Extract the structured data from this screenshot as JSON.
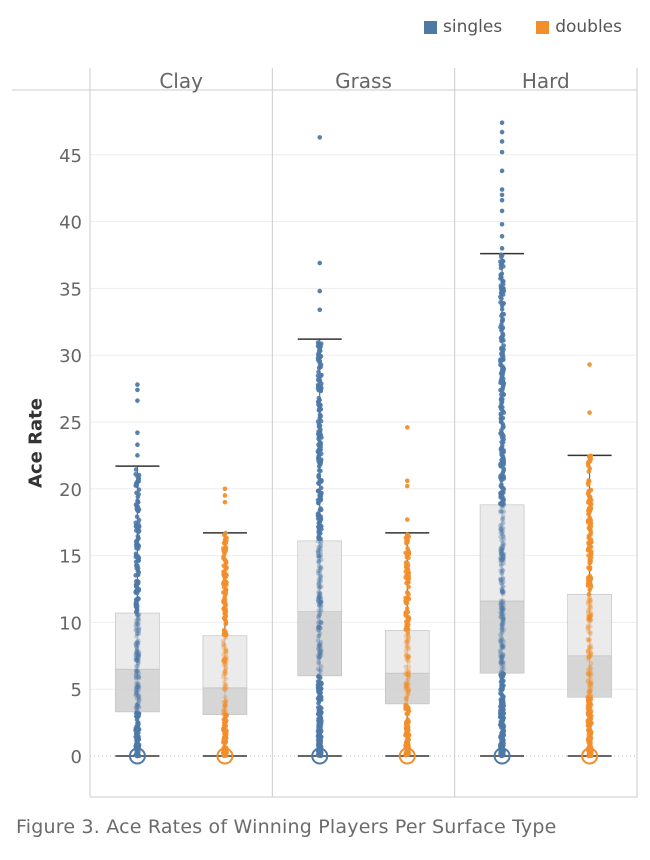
{
  "legend": [
    {
      "label": "singles",
      "color": "#4e79a7"
    },
    {
      "label": "doubles",
      "color": "#f28e2b"
    }
  ],
  "caption": "Figure 3. Ace Rates of Winning Players Per Surface Type",
  "chart_data": {
    "type": "box",
    "title": "",
    "ylabel": "Ace Rate",
    "xlabel": "",
    "ylim": [
      0,
      48
    ],
    "yticks": [
      0,
      5,
      10,
      15,
      20,
      25,
      30,
      35,
      40,
      45
    ],
    "grid": true,
    "legend_position": "top-right",
    "panels": [
      "Clay",
      "Grass",
      "Hard"
    ],
    "series": [
      {
        "name": "singles",
        "color": "#4e79a7",
        "boxes": [
          {
            "panel": "Clay",
            "min": 0,
            "q1": 3.3,
            "median": 6.5,
            "q3": 10.7,
            "whisker_high": 21.7,
            "outliers": [
              22.5,
              23.3,
              24.2,
              26.6,
              27.4,
              27.8
            ]
          },
          {
            "panel": "Grass",
            "min": 0,
            "q1": 6.0,
            "median": 10.8,
            "q3": 16.1,
            "whisker_high": 31.2,
            "outliers": [
              33.4,
              34.8,
              36.9,
              46.3
            ]
          },
          {
            "panel": "Hard",
            "min": 0,
            "q1": 6.2,
            "median": 11.6,
            "q3": 18.8,
            "whisker_high": 37.6,
            "outliers": [
              38.0,
              38.9,
              39.8,
              40.8,
              41.6,
              42.0,
              42.4,
              43.8,
              45.2,
              46.0,
              46.7,
              47.4
            ]
          }
        ]
      },
      {
        "name": "doubles",
        "color": "#f28e2b",
        "boxes": [
          {
            "panel": "Clay",
            "min": 0,
            "q1": 3.1,
            "median": 5.1,
            "q3": 9.0,
            "whisker_high": 16.7,
            "outliers": [
              19.0,
              19.5,
              20.0
            ]
          },
          {
            "panel": "Grass",
            "min": 0,
            "q1": 3.9,
            "median": 6.2,
            "q3": 9.4,
            "whisker_high": 16.7,
            "outliers": [
              17.7,
              20.2,
              20.6,
              24.6
            ]
          },
          {
            "panel": "Hard",
            "min": 0,
            "q1": 4.4,
            "median": 7.5,
            "q3": 12.1,
            "whisker_high": 22.5,
            "outliers": [
              25.7,
              29.3
            ]
          }
        ]
      }
    ]
  }
}
